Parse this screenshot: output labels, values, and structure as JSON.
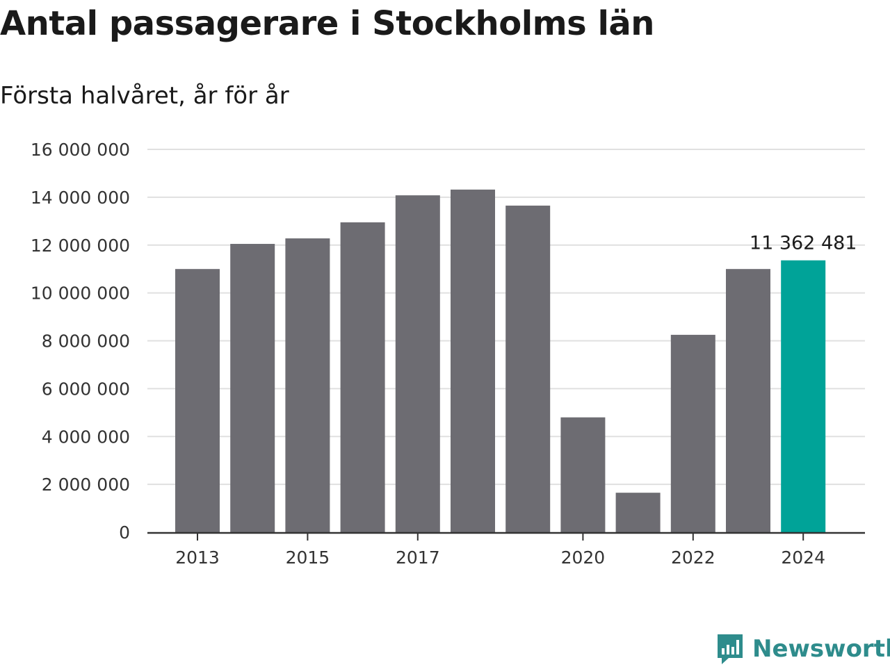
{
  "header": {
    "title": "Antal passagerare i Stockholms län",
    "subtitle": "Första halvåret, år för år"
  },
  "brand": {
    "name": "Newsworthy",
    "color": "#2e8c8c",
    "icon": "newsworthy-logo-icon"
  },
  "colors": {
    "bar": "#6d6c72",
    "highlight": "#00a398",
    "grid": "#e0e0e0",
    "axis": "#333333"
  },
  "chart_data": {
    "type": "bar",
    "categories": [
      "2013",
      "2014",
      "2015",
      "2016",
      "2017",
      "2018",
      "2019",
      "2020",
      "2021",
      "2022",
      "2023",
      "2024"
    ],
    "values": [
      11000000,
      12050000,
      12280000,
      12950000,
      14080000,
      14320000,
      13650000,
      4800000,
      1650000,
      8250000,
      11000000,
      11362481
    ],
    "highlight_index": 11,
    "data_labels": [
      {
        "index": 11,
        "text": "11 362 481"
      }
    ],
    "x_tick_labels": [
      "2013",
      "2015",
      "2017",
      "2020",
      "2022",
      "2024"
    ],
    "y_ticks": [
      {
        "value": 0,
        "label": "0"
      },
      {
        "value": 2000000,
        "label": "2 000 000"
      },
      {
        "value": 4000000,
        "label": "4 000 000"
      },
      {
        "value": 6000000,
        "label": "6 000 000"
      },
      {
        "value": 8000000,
        "label": "8 000 000"
      },
      {
        "value": 10000000,
        "label": "10 000 000"
      },
      {
        "value": 12000000,
        "label": "12 000 000"
      },
      {
        "value": 14000000,
        "label": "14 000 000"
      },
      {
        "value": 16000000,
        "label": "16 000 000"
      }
    ],
    "ylim": [
      0,
      16000000
    ],
    "grid": true,
    "title": "Antal passagerare i Stockholms län",
    "subtitle": "Första halvåret, år för år",
    "xlabel": "",
    "ylabel": ""
  }
}
